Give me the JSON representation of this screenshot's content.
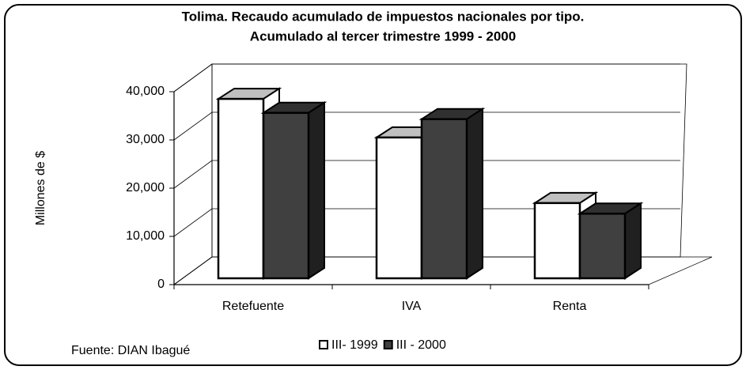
{
  "chart_data": {
    "type": "bar3d",
    "title": [
      "Tolima. Recaudo acumulado de impuestos nacionales por tipo.",
      "Acumulado al tercer trimestre 1999 - 2000"
    ],
    "ylabel": "Millones de $",
    "source": "Fuente: DIAN Ibagué",
    "categories": [
      "Retefuente",
      "IVA",
      "Renta"
    ],
    "series": [
      {
        "name": "III- 1999",
        "color": "#ffffff",
        "values": [
          37200,
          29200,
          15600
        ]
      },
      {
        "name": "III - 2000",
        "color": "#404040",
        "values": [
          34300,
          33000,
          13400
        ]
      }
    ],
    "ylim": [
      0,
      40000
    ],
    "yticks": [
      0,
      {
        "value": 10000,
        "label": "10,000"
      },
      {
        "value": 20000,
        "label": "20,000"
      },
      {
        "value": 30000,
        "label": "30,000"
      },
      {
        "value": 40000,
        "label": "40,000"
      }
    ],
    "grid": true
  }
}
